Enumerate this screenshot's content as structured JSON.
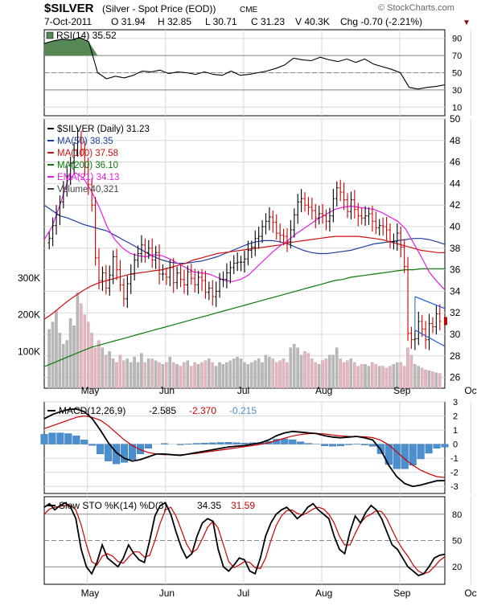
{
  "header": {
    "symbol": "$SILVER",
    "description": "(Silver - Spot Price (EOD))",
    "exchange": "CME",
    "watermark": "© StockCharts.com",
    "date": "7-Oct-2011",
    "open": "O 31.94",
    "high": "H 32.85",
    "low": "L 30.71",
    "close": "C 31.23",
    "volume": "V 40.3K",
    "change": "Chg -0.70 (-2.21%)",
    "change_marker": "▼"
  },
  "colors": {
    "price_up": "#000000",
    "price_down": "#cc0000",
    "ma50": "#1f3f9f",
    "ma100": "#cc1111",
    "ma200": "#0a7a0a",
    "ema21": "#e020e0",
    "volume_up": "#b8b8b8",
    "volume_down": "#eab4bc",
    "rsi_fill": "#558855",
    "rsi_low_fill": "#c08080",
    "macd": "#000000",
    "macd_signal": "#cc0000",
    "macd_hist": "#4a8fd0",
    "sto_k": "#000000",
    "sto_d": "#cc0000",
    "channel": "#2255dd",
    "grid": "#d8d8d8",
    "ref_line": "#888888"
  },
  "chart_data": [
    {
      "type": "line",
      "panel": "rsi",
      "legend": "RSI(14) 35.52",
      "ylim": [
        0,
        100
      ],
      "yticks": [
        10,
        30,
        50,
        70,
        90
      ],
      "reference_lines": [
        30,
        50,
        70
      ],
      "x": [
        0,
        3,
        6,
        9,
        12,
        15,
        18,
        21,
        24,
        27,
        30,
        33,
        36,
        39,
        42,
        45,
        48,
        51,
        54,
        57,
        60,
        63,
        66,
        69,
        72,
        75,
        78,
        81,
        84,
        87,
        90,
        93,
        96,
        99,
        102,
        105,
        108,
        111,
        114,
        117,
        120,
        123,
        126,
        129,
        132,
        135
      ],
      "values": [
        84,
        87,
        89,
        88,
        91,
        86,
        50,
        43,
        46,
        44,
        47,
        52,
        51,
        53,
        49,
        51,
        50,
        48,
        51,
        48,
        47,
        52,
        47,
        48,
        50,
        52,
        55,
        59,
        67,
        65,
        64,
        68,
        65,
        63,
        66,
        62,
        66,
        60,
        57,
        54,
        50,
        33,
        31,
        33,
        34,
        36
      ]
    },
    {
      "type": "candlestick",
      "panel": "price",
      "title": "$SILVER (Daily) 31.23",
      "ylim": [
        25,
        50
      ],
      "yticks": [
        26,
        28,
        30,
        32,
        34,
        36,
        38,
        40,
        42,
        44,
        46,
        48,
        50
      ],
      "x_labels": [
        "May",
        "Jun",
        "Jul",
        "Aug",
        "Sep",
        "Oct"
      ],
      "x_label_index": [
        13,
        35,
        57,
        79,
        101,
        121
      ],
      "candles_close": [
        38.9,
        40.1,
        41.1,
        42.3,
        43.5,
        44.7,
        45.9,
        47.1,
        48.3,
        47.2,
        45.5,
        43.9,
        42.0,
        37.1,
        35.0,
        35.7,
        34.3,
        35.5,
        37.2,
        36.0,
        34.6,
        33.3,
        34.7,
        35.6,
        36.9,
        37.5,
        38.3,
        37.6,
        38.0,
        36.9,
        37.6,
        35.6,
        35.6,
        35.3,
        36.2,
        34.8,
        35.7,
        35.1,
        34.6,
        35.8,
        35.2,
        34.6,
        35.3,
        35.0,
        33.9,
        34.3,
        33.5,
        34.0,
        35.1,
        35.1,
        35.7,
        36.2,
        36.6,
        36.7,
        36.7,
        37.0,
        37.8,
        38.1,
        38.9,
        39.1,
        40.0,
        40.5,
        40.9,
        40.4,
        39.4,
        39.2,
        39.1,
        38.6,
        39.7,
        41.1,
        42.3,
        42.6,
        42.0,
        41.8,
        41.5,
        40.8,
        41.2,
        41.0,
        40.5,
        41.0,
        42.6,
        43.6,
        43.2,
        42.5,
        41.4,
        42.5,
        41.6,
        41.0,
        40.8,
        41.0,
        41.2,
        40.5,
        39.9,
        40.1,
        40.0,
        39.7,
        38.6,
        38.6,
        39.4,
        38.1,
        36.3,
        30.1,
        29.5,
        29.6,
        31.2,
        30.5,
        29.5,
        31.0,
        30.7,
        31.9,
        31.2
      ],
      "last_close": 31.23,
      "series": [
        {
          "name": "MA(50)",
          "legend": "MA(50) 38.35",
          "values": [
            42,
            41.5,
            41,
            40.8,
            40.5,
            40.2,
            40.0,
            39.8,
            39.6,
            39.2,
            38.8,
            38.4,
            38.0,
            37.6,
            37.2,
            36.9,
            36.7,
            36.6,
            36.6,
            36.7,
            36.8,
            37.0,
            37.2,
            37.5,
            37.8,
            38.1,
            38.4,
            38.6,
            38.7,
            38.7,
            38.6,
            38.4,
            38.1,
            37.8,
            37.6,
            37.5,
            37.5,
            37.6,
            37.7,
            37.8,
            38.0,
            38.2,
            38.4,
            38.5,
            38.6,
            38.7,
            38.8,
            38.9,
            38.9,
            38.8,
            38.6,
            38.35
          ]
        },
        {
          "name": "MA(100)",
          "legend": "MA(100) 37.58",
          "values": [
            31.4,
            31.9,
            32.5,
            33.1,
            33.6,
            34.1,
            34.5,
            34.8,
            35.0,
            35.2,
            35.4,
            35.6,
            35.7,
            35.8,
            35.9,
            36.0,
            36.2,
            36.4,
            36.6,
            36.9,
            37.1,
            37.3,
            37.5,
            37.6,
            37.7,
            37.8,
            37.9,
            38.0,
            38.1,
            38.2,
            38.3,
            38.5,
            38.6,
            38.7,
            38.8,
            38.9,
            39.0,
            39.1,
            39.1,
            39.1,
            39.1,
            39.0,
            38.9,
            38.8,
            38.6,
            38.4,
            38.2,
            38.0,
            37.8,
            37.7,
            37.6,
            37.58
          ]
        },
        {
          "name": "MA(200)",
          "legend": "MA(200) 36.10",
          "values": [
            27.0,
            27.3,
            27.6,
            27.9,
            28.2,
            28.5,
            28.8,
            29.0,
            29.2,
            29.4,
            29.6,
            29.8,
            30.0,
            30.2,
            30.4,
            30.6,
            30.8,
            31.0,
            31.2,
            31.4,
            31.6,
            31.8,
            32.0,
            32.2,
            32.4,
            32.6,
            32.8,
            33.0,
            33.2,
            33.4,
            33.6,
            33.8,
            34.0,
            34.2,
            34.4,
            34.6,
            34.8,
            35.0,
            35.1,
            35.3,
            35.4,
            35.5,
            35.6,
            35.7,
            35.8,
            35.9,
            36.0,
            36.0,
            36.1,
            36.1,
            36.1,
            36.1
          ]
        },
        {
          "name": "EMA(21)",
          "legend": "EMA(21) 34.13",
          "values": [
            38.8,
            40.0,
            42.0,
            44.3,
            45.0,
            44.5,
            43.3,
            41.8,
            40.0,
            38.8,
            38.0,
            37.5,
            37.3,
            37.2,
            37.4,
            37.3,
            37.0,
            36.6,
            36.2,
            35.8,
            35.7,
            35.6,
            35.3,
            35.0,
            34.9,
            35.1,
            35.5,
            36.2,
            36.9,
            37.6,
            38.2,
            38.7,
            39.3,
            39.8,
            40.3,
            40.8,
            41.2,
            41.6,
            41.8,
            41.9,
            41.8,
            41.7,
            41.6,
            41.3,
            40.9,
            40.5,
            39.8,
            38.5,
            37.2,
            35.8,
            34.9,
            34.13
          ]
        }
      ],
      "channel": {
        "upper_start": 33.5,
        "upper_end": 32.4,
        "lower_start": 30.4,
        "lower_end": 28.9
      }
    },
    {
      "type": "bar",
      "panel": "volume",
      "legend": "Volume 40,321",
      "ylim": [
        0,
        400000
      ],
      "yticks_labels": [
        "100K",
        "200K",
        "300K"
      ],
      "yticks_values": [
        100000,
        200000,
        300000
      ],
      "values": [
        160000,
        180000,
        210000,
        150000,
        120000,
        130000,
        190000,
        170000,
        260000,
        230000,
        200000,
        180000,
        150000,
        110000,
        130000,
        110000,
        90000,
        100000,
        80000,
        70000,
        90000,
        75000,
        80000,
        70000,
        85000,
        70000,
        95000,
        70000,
        80000,
        80000,
        75000,
        70000,
        65000,
        70000,
        85000,
        70000,
        65000,
        60000,
        70000,
        75000,
        60000,
        70000,
        65000,
        70000,
        75000,
        80000,
        70000,
        60000,
        70000,
        65000,
        70000,
        75000,
        80000,
        85000,
        80000,
        70000,
        65000,
        70000,
        75000,
        80000,
        70000,
        90000,
        85000,
        80000,
        70000,
        75000,
        80000,
        70000,
        110000,
        120000,
        110000,
        90000,
        100000,
        95000,
        80000,
        70000,
        65000,
        75000,
        80000,
        90000,
        90000,
        110000,
        80000,
        70000,
        75000,
        80000,
        70000,
        60000,
        65000,
        65000,
        60000,
        70000,
        65000,
        60000,
        60000,
        55000,
        60000,
        65000,
        70000,
        70000,
        60000,
        110000,
        90000,
        65000,
        60000,
        55000,
        50000,
        48000,
        45000,
        42000,
        40321
      ]
    },
    {
      "type": "line",
      "panel": "macd",
      "legend_main": "MACD(12,26,9)",
      "legend_macd": "-2.585",
      "legend_signal": "-2.370",
      "legend_hist": "-0.215",
      "ylim": [
        -3.5,
        3.0
      ],
      "yticks": [
        3,
        2,
        1,
        0,
        -1,
        -2,
        -3
      ],
      "macd": [
        1.8,
        2.1,
        2.3,
        2.45,
        2.5,
        2.3,
        1.8,
        1.0,
        0.1,
        -0.6,
        -1.0,
        -1.2,
        -1.1,
        -0.9,
        -0.7,
        -0.7,
        -0.75,
        -0.8,
        -0.7,
        -0.6,
        -0.5,
        -0.4,
        -0.3,
        -0.2,
        -0.15,
        -0.1,
        0,
        0.1,
        0.3,
        0.6,
        0.8,
        0.9,
        0.85,
        0.8,
        0.75,
        0.6,
        0.5,
        0.45,
        0.5,
        0.55,
        0.45,
        0.3,
        -0.4,
        -1.5,
        -2.3,
        -2.8,
        -3.0,
        -2.9,
        -2.75,
        -2.6,
        -2.585
      ],
      "signal": [
        1.1,
        1.3,
        1.5,
        1.7,
        1.9,
        2.0,
        1.9,
        1.7,
        1.3,
        0.8,
        0.3,
        -0.1,
        -0.4,
        -0.6,
        -0.7,
        -0.75,
        -0.75,
        -0.75,
        -0.72,
        -0.66,
        -0.58,
        -0.5,
        -0.42,
        -0.34,
        -0.26,
        -0.18,
        -0.1,
        -0.01,
        0.1,
        0.25,
        0.42,
        0.58,
        0.68,
        0.74,
        0.76,
        0.72,
        0.65,
        0.58,
        0.55,
        0.54,
        0.52,
        0.46,
        0.28,
        -0.05,
        -0.55,
        -1.05,
        -1.5,
        -1.85,
        -2.1,
        -2.3,
        -2.37
      ],
      "histogram": [
        0.7,
        0.8,
        0.8,
        0.75,
        0.6,
        0.3,
        -0.1,
        -0.7,
        -1.2,
        -1.4,
        -1.3,
        -1.1,
        -0.7,
        -0.3,
        0,
        0.05,
        0,
        -0.05,
        0.02,
        0.06,
        0.08,
        0.1,
        0.12,
        0.14,
        0.11,
        0.08,
        0.1,
        0.11,
        0.2,
        0.35,
        0.38,
        0.32,
        0.17,
        0.06,
        -0.01,
        -0.12,
        -0.15,
        -0.13,
        -0.05,
        0.01,
        -0.07,
        -0.16,
        -0.68,
        -1.45,
        -1.75,
        -1.75,
        -1.5,
        -1.05,
        -0.65,
        -0.3,
        -0.215
      ]
    },
    {
      "type": "line",
      "panel": "stochastics",
      "legend_main": "Slow STO %K(14) %D(3)",
      "legend_k": "34.35",
      "legend_d": "31.59",
      "ylim": [
        0,
        100
      ],
      "yticks": [
        20,
        50,
        80
      ],
      "reference_lines": [
        20,
        50,
        80
      ],
      "k": [
        88,
        92,
        85,
        90,
        93,
        88,
        75,
        40,
        20,
        12,
        25,
        45,
        30,
        25,
        20,
        30,
        45,
        35,
        28,
        25,
        50,
        78,
        90,
        93,
        80,
        60,
        42,
        30,
        35,
        55,
        70,
        75,
        72,
        40,
        20,
        15,
        22,
        30,
        28,
        15,
        12,
        30,
        55,
        70,
        80,
        85,
        88,
        82,
        75,
        80,
        88,
        92,
        85,
        80,
        75,
        55,
        40,
        35,
        60,
        78,
        70,
        82,
        90,
        85,
        75,
        60,
        45,
        40,
        30,
        20,
        15,
        10,
        12,
        20,
        30,
        33,
        34.35
      ],
      "d": [
        80,
        86,
        88,
        89,
        90,
        90,
        85,
        68,
        45,
        26,
        22,
        32,
        35,
        32,
        26,
        24,
        31,
        37,
        37,
        31,
        33,
        50,
        70,
        85,
        88,
        78,
        62,
        46,
        36,
        40,
        52,
        65,
        72,
        64,
        45,
        26,
        19,
        22,
        26,
        25,
        19,
        18,
        30,
        50,
        67,
        78,
        84,
        85,
        81,
        79,
        82,
        86,
        88,
        86,
        80,
        70,
        55,
        45,
        45,
        58,
        70,
        77,
        80,
        84,
        83,
        75,
        62,
        50,
        40,
        32,
        22,
        15,
        12,
        14,
        20,
        27,
        31.59
      ]
    }
  ]
}
